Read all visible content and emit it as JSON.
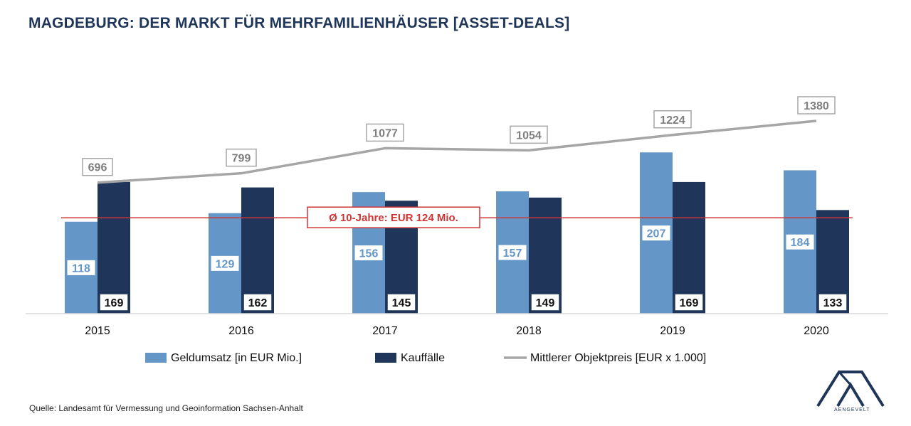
{
  "title": "MAGDEBURG: DER MARKT FÜR MEHRFAMILIENHÄUSER [ASSET-DEALS]",
  "source": "Quelle: Landesamt für Vermessung und Geoinformation Sachsen-Anhalt",
  "logo_text": "AENGEVELT",
  "colors": {
    "geldumsatz": "#6497c8",
    "kauffaelle": "#1f3559",
    "objektpreis": "#a6a6a6",
    "average": "#d03535",
    "title": "#1f3559"
  },
  "chart_data": {
    "type": "bar",
    "categories": [
      "2015",
      "2016",
      "2017",
      "2018",
      "2019",
      "2020"
    ],
    "series": [
      {
        "name": "Geldumsatz [in EUR Mio.]",
        "type": "bar",
        "axis": "left",
        "values": [
          118,
          129,
          156,
          157,
          207,
          184
        ]
      },
      {
        "name": "Kauffälle",
        "type": "bar",
        "axis": "left",
        "values": [
          169,
          162,
          145,
          149,
          169,
          133
        ]
      },
      {
        "name": "Mittlerer Objektpreis [EUR x 1.000]",
        "type": "line",
        "axis": "right",
        "values": [
          696,
          799,
          1077,
          1054,
          1224,
          1380
        ]
      }
    ],
    "average_line": {
      "label": "Ø 10-Jahre: EUR 124 Mio.",
      "value": 124
    },
    "ylim": [
      0,
      210
    ],
    "ylim_right": [
      0,
      1380
    ],
    "grid": false,
    "legend_position": "bottom"
  }
}
